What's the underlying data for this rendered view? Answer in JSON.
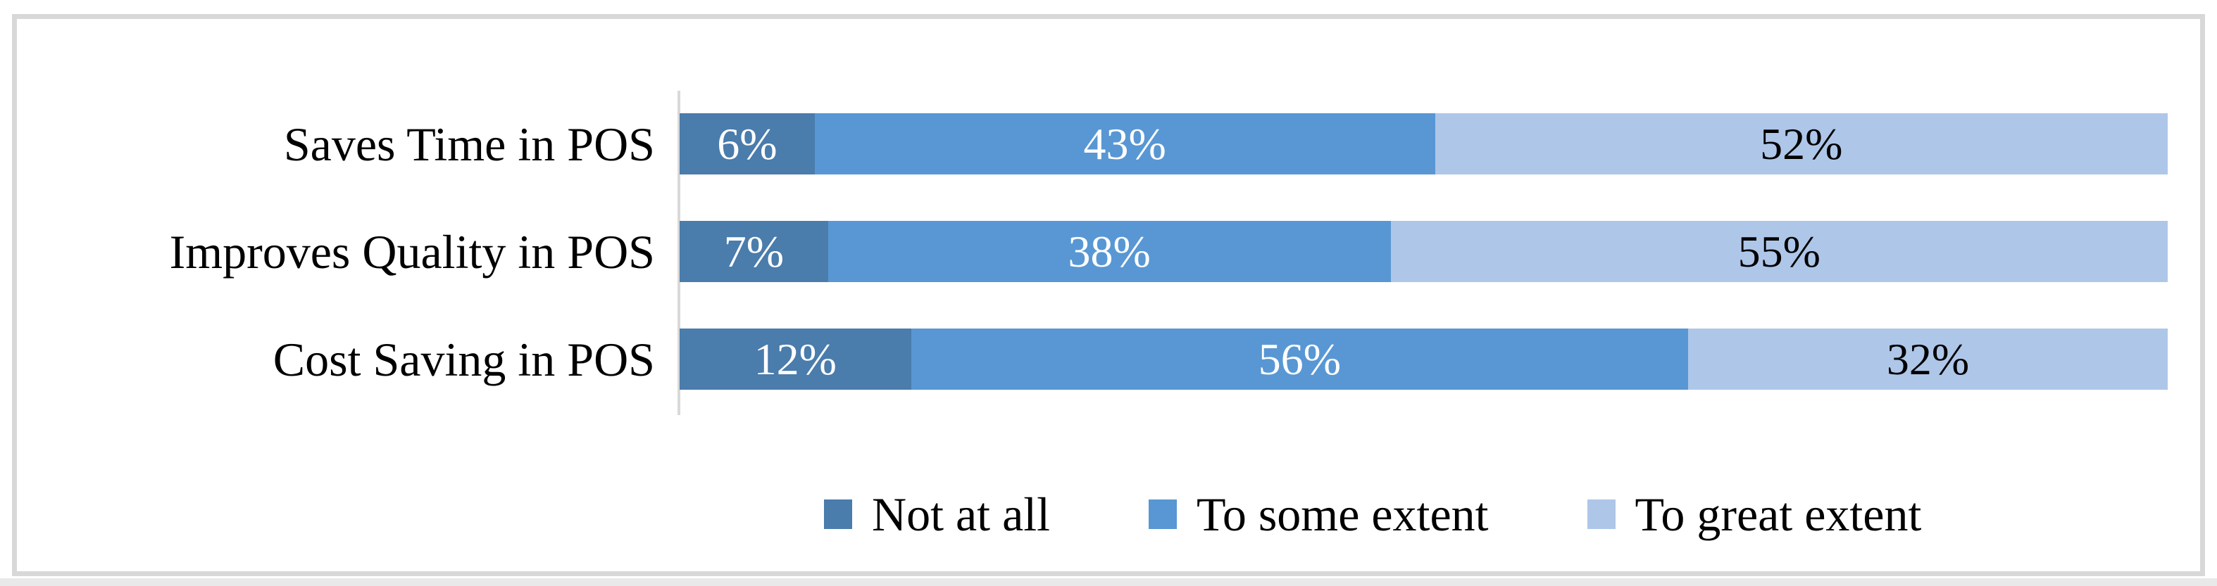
{
  "chart_data": {
    "type": "bar",
    "orientation": "horizontal",
    "stacked": true,
    "normalized_100_percent": true,
    "title": "",
    "xlabel": "",
    "ylabel": "",
    "grid": false,
    "legend_position": "bottom",
    "axis_line_color": "#d9d9d9",
    "frame_color": "#d8d8d8",
    "categories": [
      "Saves Time in POS",
      "Improves Quality in POS",
      "Cost Saving in POS"
    ],
    "series": [
      {
        "name": "Not at all",
        "color": "#4a7cac",
        "label_text_color": "#ffffff",
        "values": [
          6,
          7,
          12
        ]
      },
      {
        "name": "To some extent",
        "color": "#5897d3",
        "label_text_color": "#ffffff",
        "values": [
          43,
          38,
          56
        ]
      },
      {
        "name": "To great extent",
        "color": "#aec6e8",
        "label_text_color": "#000000",
        "values": [
          52,
          55,
          32
        ]
      }
    ],
    "data_labels": [
      [
        "6%",
        "43%",
        "52%"
      ],
      [
        "7%",
        "38%",
        "55%"
      ],
      [
        "12%",
        "56%",
        "32%"
      ]
    ]
  }
}
